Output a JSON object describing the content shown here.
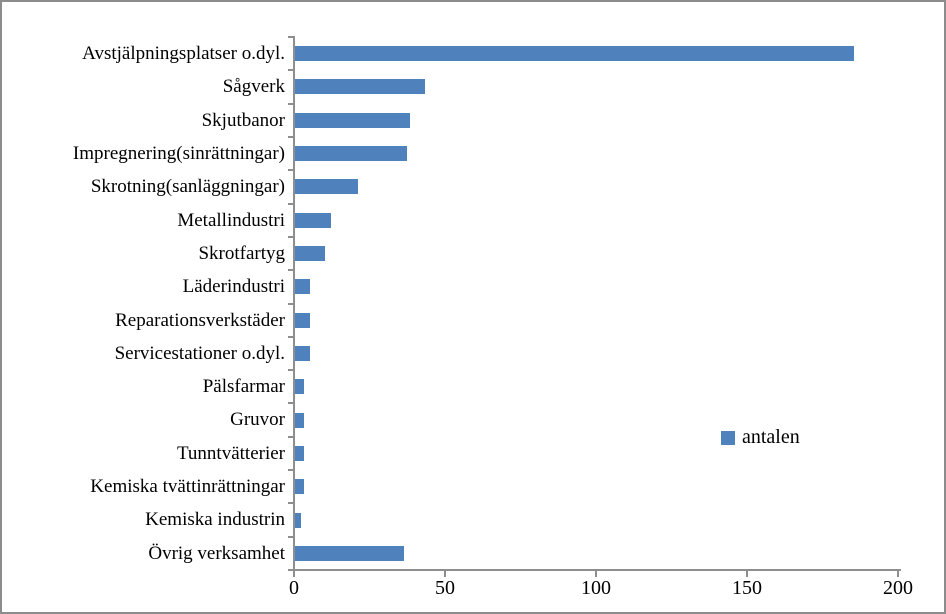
{
  "chart_data": {
    "type": "bar",
    "orientation": "horizontal",
    "title": "",
    "xlabel": "",
    "ylabel": "",
    "categories": [
      "Avstjälpningsplatser o.dyl.",
      "Sågverk",
      "Skjutbanor",
      "Impregnering(sinrättningar)",
      "Skrotning(sanläggningar)",
      "Metallindustri",
      "Skrotfartyg",
      "Läderindustri",
      "Reparationsverkstäder",
      "Servicestationer o.dyl.",
      "Pälsfarmar",
      "Gruvor",
      "Tunntvätterier",
      "Kemiska tvättinrättningar",
      "Kemiska industrin",
      "Övrig verksamhet"
    ],
    "series": [
      {
        "name": "antalen",
        "values": [
          185,
          43,
          38,
          37,
          21,
          12,
          10,
          5,
          5,
          5,
          3,
          3,
          3,
          3,
          2,
          36
        ]
      }
    ],
    "xlim": [
      0,
      200
    ],
    "x_ticks": [
      0,
      50,
      100,
      150,
      200
    ],
    "grid": false,
    "legend": {
      "label": "antalen",
      "position": "center-right"
    },
    "colors": {
      "bar": "#4F81BD",
      "axis": "#8E8E8E",
      "text": "#000000",
      "frame_border": "#8C8C8C",
      "background": "#FFFFFF"
    }
  }
}
